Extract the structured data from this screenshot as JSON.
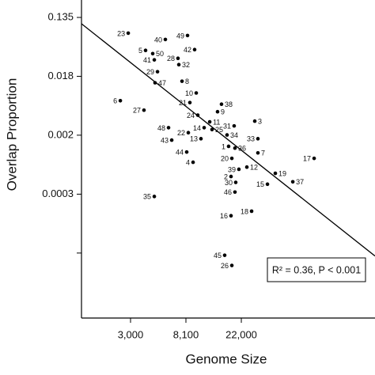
{
  "chart_data": {
    "type": "scatter",
    "x_label": "Genome Size",
    "y_label": "Overlap Proportion",
    "xscale": "log",
    "yscale": "log",
    "xlim": [
      1230,
      246000
    ],
    "ylim": [
      5e-06,
      0.244
    ],
    "xticks": [
      {
        "value": 2981,
        "label": "3,000"
      },
      {
        "value": 8103,
        "label": "8,100"
      },
      {
        "value": 22026,
        "label": "22,000"
      }
    ],
    "yticks": [
      {
        "value": 0.135,
        "label": "0.135"
      },
      {
        "value": 0.0183,
        "label": "0.018"
      },
      {
        "value": 0.00248,
        "label": "0.002"
      },
      {
        "value": 0.000335,
        "label": "0.0003"
      },
      {
        "value": 4.54e-05,
        "label": null
      }
    ],
    "color": "#000000",
    "labels": [
      "23",
      "40",
      "49",
      "5",
      "50",
      "41",
      "42",
      "28",
      "32",
      "29",
      "47",
      "8",
      "10",
      "6",
      "27",
      "21",
      "38",
      "24",
      "9",
      "11",
      "48",
      "22",
      "14",
      "25",
      "3",
      "31",
      "33",
      "34",
      "43",
      "13",
      "1",
      "36",
      "7",
      "44",
      "20",
      "17",
      "4",
      "39",
      "2",
      "12",
      "19",
      "30",
      "37",
      "15",
      "46",
      "35",
      "18",
      "16",
      "45",
      "26"
    ],
    "x": [
      2860,
      5590,
      8340,
      3910,
      4450,
      4580,
      9480,
      7020,
      7130,
      4850,
      4640,
      7550,
      9760,
      2480,
      3800,
      8700,
      15400,
      10040,
      14340,
      12450,
      5920,
      8460,
      11260,
      12980,
      28080,
      19350,
      29720,
      17020,
      6270,
      10630,
      17510,
      19630,
      29720,
      8220,
      18560,
      82000,
      9220,
      21080,
      18290,
      24340,
      40690,
      19910,
      55790,
      35300,
      19630,
      4580,
      26520,
      18290,
      16310,
      18560
    ],
    "y": [
      0.0792,
      0.0639,
      0.0731,
      0.0441,
      0.0395,
      0.032,
      0.0453,
      0.0337,
      0.0272,
      0.0214,
      0.0147,
      0.0155,
      0.0104,
      0.008,
      0.0058,
      0.0075,
      0.0071,
      0.0049,
      0.0055,
      0.0039,
      0.0032,
      0.0027,
      0.0032,
      0.003,
      0.004,
      0.0034,
      0.0022,
      0.0025,
      0.0021,
      0.0022,
      0.0017,
      0.0016,
      0.00136,
      0.0014,
      0.00113,
      0.00113,
      0.00099,
      0.00078,
      0.00061,
      0.00084,
      0.00068,
      0.0005,
      0.00051,
      0.00047,
      0.00036,
      0.00031,
      0.000188,
      0.000161,
      4.21e-05,
      2.98e-05
    ],
    "fit_line": {
      "x": [
        1230,
        246000
      ],
      "y": [
        0.109,
        4.11e-05
      ]
    },
    "annotation": "R² = 0.36, P < 0.001"
  }
}
